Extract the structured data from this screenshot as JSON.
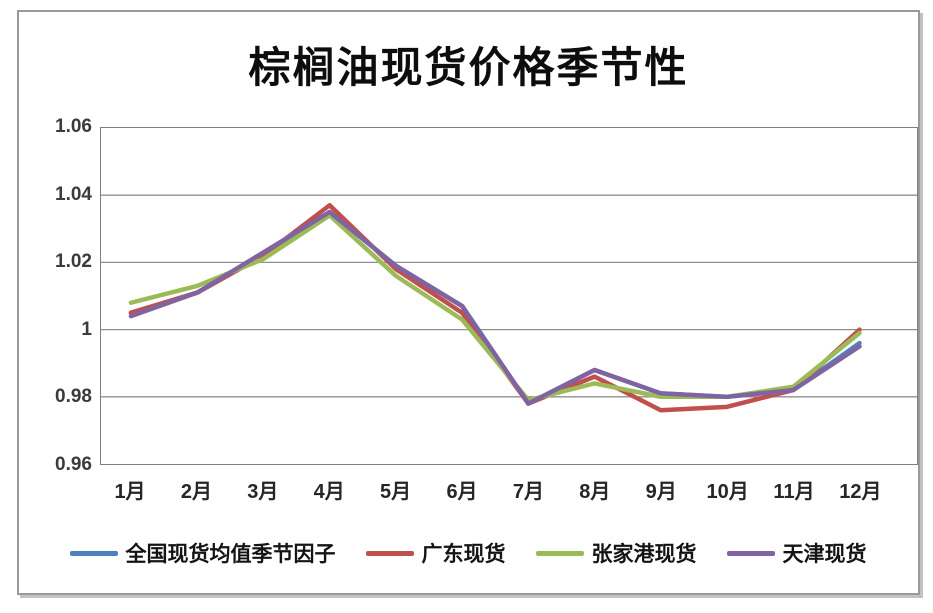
{
  "chart_data": {
    "type": "line",
    "title": "棕榈油现货价格季节性",
    "categories": [
      "1月",
      "2月",
      "3月",
      "4月",
      "5月",
      "6月",
      "7月",
      "8月",
      "9月",
      "10月",
      "11月",
      "12月"
    ],
    "series": [
      {
        "name": "全国现货均值季节因子",
        "color": "#4F81BD",
        "values": [
          1.005,
          1.011,
          1.022,
          1.035,
          1.019,
          1.007,
          0.978,
          0.988,
          0.981,
          0.98,
          0.982,
          0.996
        ]
      },
      {
        "name": "广东现货",
        "color": "#C0504D",
        "values": [
          1.005,
          1.011,
          1.022,
          1.037,
          1.018,
          1.005,
          0.978,
          0.986,
          0.976,
          0.977,
          0.982,
          1.0
        ]
      },
      {
        "name": "张家港现货",
        "color": "#9BBB59",
        "values": [
          1.008,
          1.013,
          1.021,
          1.034,
          1.016,
          1.003,
          0.979,
          0.984,
          0.98,
          0.98,
          0.983,
          0.999
        ]
      },
      {
        "name": "天津现货",
        "color": "#8064A2",
        "values": [
          1.004,
          1.011,
          1.023,
          1.035,
          1.019,
          1.007,
          0.978,
          0.988,
          0.981,
          0.98,
          0.982,
          0.995
        ]
      }
    ],
    "ylim": [
      0.96,
      1.06
    ],
    "yticks": [
      {
        "label": "1.06",
        "value": 1.06
      },
      {
        "label": "1.04",
        "value": 1.04
      },
      {
        "label": "1.02",
        "value": 1.02
      },
      {
        "label": "1",
        "value": 1.0
      },
      {
        "label": "0.98",
        "value": 0.98
      },
      {
        "label": "0.96",
        "value": 0.96
      }
    ],
    "grid": "horizontal",
    "legend_position": "bottom",
    "colors": {
      "gridline": "#8f8f8f",
      "plot_border": "#7f7f7f",
      "axis_text": "#3b3b3b",
      "title_text": "#0d0d0d"
    }
  }
}
